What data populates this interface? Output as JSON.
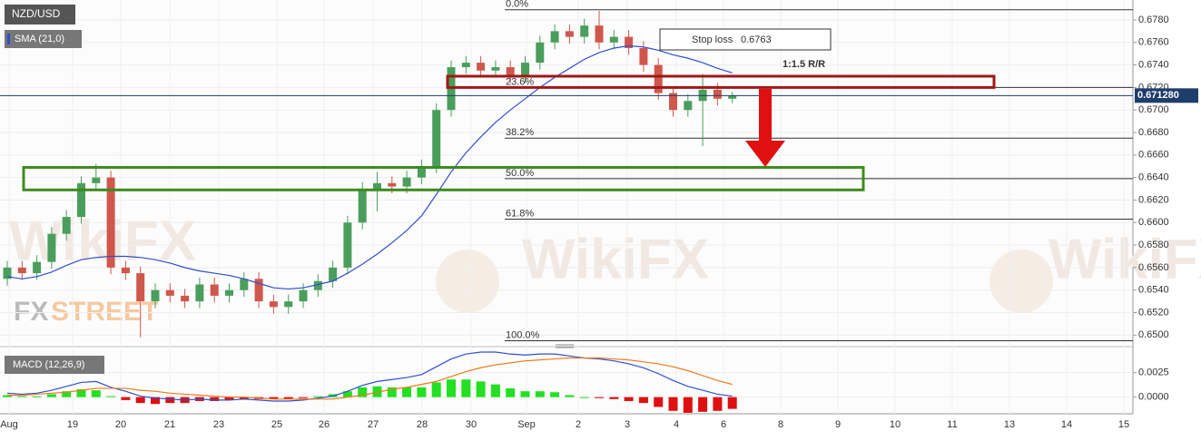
{
  "chart_data": {
    "type": "candlestick",
    "title": "NZD/USD",
    "up_color": "#4a9e5c",
    "down_color": "#d0574c",
    "grid": true,
    "open": [
      0.655,
      0.656,
      0.6555,
      0.6565,
      0.659,
      0.6605,
      0.6635,
      0.664,
      0.656,
      0.6555,
      0.653,
      0.654,
      0.6535,
      0.653,
      0.6545,
      0.6535,
      0.654,
      0.655,
      0.653,
      0.6525,
      0.653,
      0.654,
      0.6548,
      0.656,
      0.66,
      0.663,
      0.6635,
      0.6632,
      0.664,
      0.665,
      0.67,
      0.6738,
      0.6742,
      0.6735,
      0.6738,
      0.673,
      0.6742,
      0.676,
      0.677,
      0.6765,
      0.6775,
      0.676,
      0.6765,
      0.6755,
      0.674,
      0.6715,
      0.67,
      0.6708,
      0.6718,
      0.671
    ],
    "high": [
      0.6566,
      0.6566,
      0.6571,
      0.6596,
      0.6611,
      0.6641,
      0.6652,
      0.6646,
      0.6566,
      0.6561,
      0.6546,
      0.6546,
      0.6541,
      0.6551,
      0.6551,
      0.6546,
      0.6556,
      0.6556,
      0.6536,
      0.6536,
      0.6546,
      0.6554,
      0.6566,
      0.6606,
      0.6636,
      0.6645,
      0.6641,
      0.6646,
      0.6656,
      0.6706,
      0.6744,
      0.6748,
      0.6748,
      0.6744,
      0.6744,
      0.6748,
      0.6766,
      0.6776,
      0.6776,
      0.6781,
      0.6788,
      0.6771,
      0.6771,
      0.6761,
      0.6746,
      0.6721,
      0.6714,
      0.6732,
      0.6724,
      0.6716
    ],
    "low": [
      0.6544,
      0.6549,
      0.6549,
      0.6559,
      0.6584,
      0.6599,
      0.6629,
      0.6554,
      0.6549,
      0.6498,
      0.6524,
      0.6529,
      0.6524,
      0.6524,
      0.6529,
      0.6529,
      0.6534,
      0.6524,
      0.6519,
      0.6519,
      0.6524,
      0.6534,
      0.6542,
      0.6554,
      0.6594,
      0.661,
      0.6626,
      0.6626,
      0.6634,
      0.6644,
      0.6694,
      0.6732,
      0.6729,
      0.6729,
      0.6724,
      0.6724,
      0.6736,
      0.6754,
      0.6759,
      0.6759,
      0.6754,
      0.6754,
      0.6749,
      0.6734,
      0.6709,
      0.6694,
      0.6694,
      0.6668,
      0.6704,
      0.6706
    ],
    "close": [
      0.656,
      0.6555,
      0.6565,
      0.659,
      0.6605,
      0.6635,
      0.664,
      0.656,
      0.6555,
      0.653,
      0.654,
      0.6535,
      0.653,
      0.6545,
      0.6535,
      0.654,
      0.655,
      0.653,
      0.6525,
      0.653,
      0.654,
      0.6548,
      0.656,
      0.66,
      0.663,
      0.6635,
      0.6632,
      0.664,
      0.665,
      0.67,
      0.6738,
      0.6742,
      0.6735,
      0.6738,
      0.673,
      0.6742,
      0.676,
      0.677,
      0.6765,
      0.6775,
      0.676,
      0.6765,
      0.6755,
      0.674,
      0.6715,
      0.67,
      0.6708,
      0.6718,
      0.671,
      0.67128
    ],
    "sma": {
      "name": "SMA (21,0)",
      "color": "#2f4fd0",
      "values": [
        0.6552,
        0.655,
        0.6552,
        0.6556,
        0.6562,
        0.6567,
        0.6569,
        0.657,
        0.657,
        0.6569,
        0.6567,
        0.6564,
        0.656,
        0.6557,
        0.6555,
        0.6553,
        0.655,
        0.6546,
        0.6542,
        0.6541,
        0.6542,
        0.6545,
        0.6548,
        0.6555,
        0.6563,
        0.6572,
        0.6582,
        0.6593,
        0.6606,
        0.6625,
        0.6645,
        0.6662,
        0.6676,
        0.6689,
        0.67,
        0.671,
        0.672,
        0.6729,
        0.6737,
        0.6745,
        0.6751,
        0.6755,
        0.6757,
        0.6756,
        0.6753,
        0.6749,
        0.6746,
        0.6742,
        0.6737,
        0.6733
      ]
    },
    "ylim": [
      0.6493,
      0.67977
    ],
    "yticks": [
      {
        "value": 0.65,
        "label": "0.6500"
      },
      {
        "value": 0.652,
        "label": "0.6520"
      },
      {
        "value": 0.654,
        "label": "0.6540"
      },
      {
        "value": 0.656,
        "label": "0.6560"
      },
      {
        "value": 0.658,
        "label": "0.6580"
      },
      {
        "value": 0.66,
        "label": "0.6600"
      },
      {
        "value": 0.662,
        "label": "0.6620"
      },
      {
        "value": 0.664,
        "label": "0.6640"
      },
      {
        "value": 0.666,
        "label": "0.6660"
      },
      {
        "value": 0.668,
        "label": "0.6680"
      },
      {
        "value": 0.67,
        "label": "0.6700"
      },
      {
        "value": 0.672,
        "label": "0.6720"
      },
      {
        "value": 0.674,
        "label": "0.6740"
      },
      {
        "value": 0.676,
        "label": "0.6760"
      },
      {
        "value": 0.678,
        "label": "0.6780"
      }
    ],
    "current_price": {
      "value": 0.67128,
      "label": "0.671280"
    },
    "x_labels": [
      "Aug",
      "19",
      "20",
      "21",
      "23",
      "25",
      "26",
      "27",
      "28",
      "30",
      "Sep",
      "2",
      "3",
      "4",
      "6",
      "8",
      "9",
      "10",
      "11",
      "13",
      "14",
      "15"
    ],
    "fib_levels": [
      {
        "label": "0.0%",
        "value": 0.6789
      },
      {
        "label": "23.6%",
        "value": 0.672
      },
      {
        "label": "38.2%",
        "value": 0.6675
      },
      {
        "label": "50.0%",
        "value": 0.6639
      },
      {
        "label": "61.8%",
        "value": 0.6603
      },
      {
        "label": "100.0%",
        "value": 0.6495
      }
    ],
    "resistance_zone": {
      "color": "#a01818",
      "range": [
        0.672,
        0.673
      ]
    },
    "support_zone": {
      "color": "#3c8c1c",
      "range": [
        0.6629,
        0.6649
      ]
    },
    "stop_loss": {
      "label": "Stop loss",
      "value": 0.6763
    },
    "risk_reward": "1:1.5 R/R",
    "watermarks": {
      "brand_a": "FX",
      "brand_b": "STREET",
      "wikifx": "WikiFX"
    },
    "macd": {
      "name": "MACD (12,26,9)",
      "macd_color": "#2f4fd0",
      "signal_color": "#f07a1a",
      "up_color": "#22e022",
      "down_color": "#e01010",
      "macd": [
        0.0004,
        0.0003,
        0.0004,
        0.0007,
        0.0011,
        0.0015,
        0.0016,
        0.001,
        0.0006,
        0.0001,
        -0.0001,
        -0.0002,
        -0.0003,
        -0.0002,
        -0.0003,
        -0.0003,
        -0.0002,
        -0.0003,
        -0.0004,
        -0.0004,
        -0.0003,
        -0.0001,
        0.0001,
        0.0006,
        0.0012,
        0.0016,
        0.0018,
        0.002,
        0.0023,
        0.0031,
        0.0039,
        0.0044,
        0.0046,
        0.0046,
        0.0044,
        0.0043,
        0.0044,
        0.0044,
        0.0042,
        0.004,
        0.0039,
        0.0037,
        0.0034,
        0.003,
        0.0024,
        0.0017,
        0.0011,
        0.0007,
        0.0003,
        0.0001
      ],
      "signal": [
        0.0002,
        0.0002,
        0.0003,
        0.0004,
        0.0005,
        0.0007,
        0.0009,
        0.0009,
        0.0009,
        0.0007,
        0.0006,
        0.0004,
        0.0003,
        0.0002,
        0.0001,
        0,
        0,
        -0.0001,
        -0.0002,
        -0.0002,
        -0.0002,
        -0.0002,
        -0.0002,
        0,
        0.0002,
        0.0005,
        0.0008,
        0.001,
        0.0013,
        0.0016,
        0.0021,
        0.0026,
        0.003,
        0.0033,
        0.0035,
        0.0037,
        0.0038,
        0.0039,
        0.004,
        0.004,
        0.004,
        0.0039,
        0.0038,
        0.0036,
        0.0034,
        0.0031,
        0.0027,
        0.0022,
        0.0017,
        0.0013
      ],
      "histogram": [
        0.0002,
        0.0001,
        0.0001,
        0.0003,
        0.0006,
        0.0008,
        0.0007,
        0.0001,
        -0.0003,
        -0.0006,
        -0.0007,
        -0.0006,
        -0.0006,
        -0.0004,
        -0.0004,
        -0.0003,
        -0.0002,
        -0.0002,
        -0.0002,
        -0.0002,
        -0.0001,
        0.0001,
        0.0003,
        0.0006,
        0.001,
        0.0011,
        0.001,
        0.001,
        0.001,
        0.0015,
        0.0018,
        0.0018,
        0.0016,
        0.0013,
        0.0009,
        0.0006,
        0.0006,
        0.0005,
        0.0002,
        0,
        -0.0001,
        -0.0002,
        -0.0004,
        -0.0006,
        -0.001,
        -0.0014,
        -0.0016,
        -0.0015,
        -0.0014,
        -0.0012
      ],
      "ylim": [
        -0.0017,
        0.0046
      ],
      "yticks": [
        {
          "value": 0,
          "label": "0.0000"
        },
        {
          "value": 0.0025,
          "label": "0.0025"
        }
      ]
    }
  }
}
